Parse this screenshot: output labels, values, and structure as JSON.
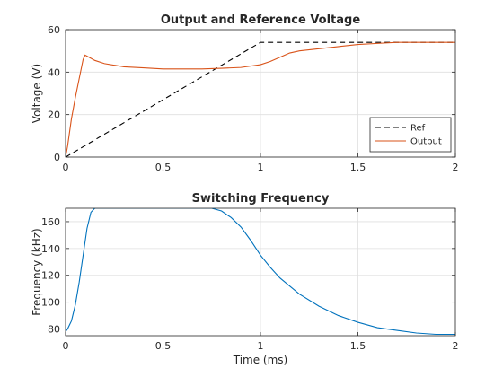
{
  "chart_data": [
    {
      "type": "line",
      "title": "Output and Reference Voltage",
      "xlabel": "",
      "ylabel": "Voltage (V)",
      "xlim": [
        0,
        2
      ],
      "ylim": [
        0,
        60
      ],
      "xticks": [
        "0",
        "0.5",
        "1",
        "1.5",
        "2"
      ],
      "yticks": [
        "0",
        "20",
        "40",
        "60"
      ],
      "grid": true,
      "legend": "bottom-right",
      "series": [
        {
          "name": "Ref",
          "color": "#000000",
          "dashed": true,
          "x": [
            0,
            1.0,
            2.0
          ],
          "y": [
            0,
            54,
            54
          ]
        },
        {
          "name": "Output",
          "color": "#d95319",
          "dashed": false,
          "x": [
            0,
            0.01,
            0.03,
            0.05,
            0.07,
            0.09,
            0.1,
            0.12,
            0.15,
            0.2,
            0.3,
            0.4,
            0.5,
            0.6,
            0.7,
            0.8,
            0.9,
            1.0,
            1.05,
            1.1,
            1.15,
            1.2,
            1.3,
            1.4,
            1.5,
            1.6,
            1.7,
            1.8,
            1.9,
            2.0
          ],
          "y": [
            0,
            5,
            18,
            28,
            37,
            46,
            48,
            47,
            45.5,
            44,
            42.5,
            42,
            41.5,
            41.5,
            41.5,
            41.8,
            42.2,
            43.5,
            45,
            47,
            49,
            50,
            51,
            52,
            53,
            53.5,
            54,
            54,
            54,
            54
          ]
        }
      ]
    },
    {
      "type": "line",
      "title": "Switching Frequency",
      "xlabel": "Time (ms)",
      "ylabel": "Frequency (kHz)",
      "xlim": [
        0,
        2
      ],
      "ylim": [
        75,
        170
      ],
      "xticks": [
        "0",
        "0.5",
        "1",
        "1.5",
        "2"
      ],
      "yticks": [
        "80",
        "100",
        "120",
        "140",
        "160"
      ],
      "grid": true,
      "series": [
        {
          "name": "",
          "color": "#0072bd",
          "dashed": false,
          "x": [
            0,
            0.01,
            0.03,
            0.05,
            0.07,
            0.09,
            0.11,
            0.13,
            0.15,
            0.2,
            0.4,
            0.6,
            0.75,
            0.8,
            0.85,
            0.9,
            0.95,
            1.0,
            1.05,
            1.1,
            1.2,
            1.3,
            1.4,
            1.5,
            1.6,
            1.7,
            1.8,
            1.9,
            2.0
          ],
          "y": [
            78,
            80,
            86,
            98,
            115,
            135,
            155,
            167,
            170,
            170,
            170,
            170,
            170,
            168,
            163,
            156,
            146,
            135,
            126,
            118,
            106,
            97,
            90,
            85,
            81,
            79,
            77,
            76,
            76
          ]
        }
      ]
    }
  ]
}
